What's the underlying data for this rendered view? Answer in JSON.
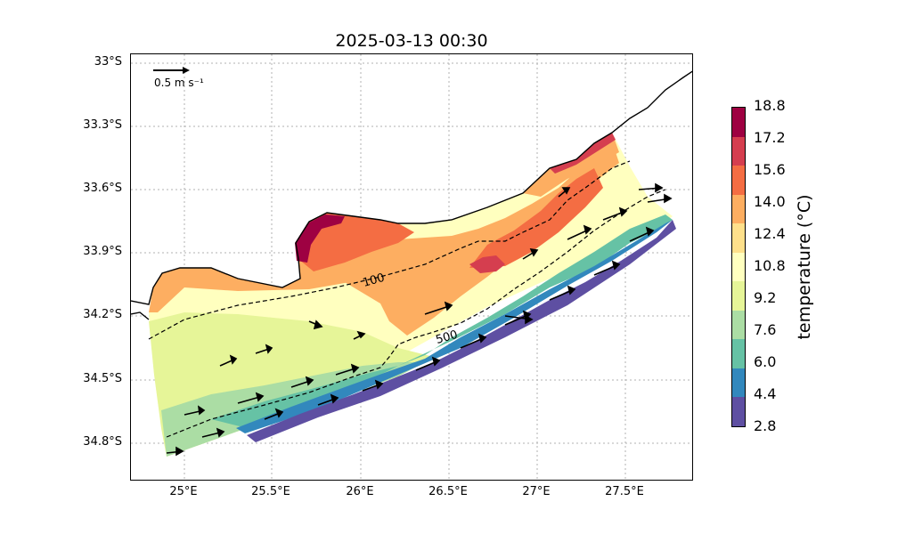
{
  "title": "2025-03-13 00:30",
  "latitude_labels": [
    "33°S",
    "33.3°S",
    "33.6°S",
    "33.9°S",
    "34.2°S",
    "34.5°S",
    "34.8°S"
  ],
  "longitude_labels": [
    "25°E",
    "25.5°E",
    "26°E",
    "26.5°E",
    "27°E",
    "27.5°E"
  ],
  "reference_vector": {
    "label": "0.5 m s⁻¹"
  },
  "contours": {
    "shallow": "100",
    "deep": "500"
  },
  "colorbar": {
    "label": "temperature (°C)",
    "ticks": [
      "18.8",
      "17.2",
      "15.6",
      "14.0",
      "12.4",
      "10.8",
      "9.2",
      "7.6",
      "6.0",
      "4.4",
      "2.8"
    ],
    "colors": [
      "#9e0142",
      "#d53e4f",
      "#f46d43",
      "#fdae61",
      "#fee08b",
      "#ffffbf",
      "#e6f598",
      "#abdda4",
      "#66c2a5",
      "#3288bd",
      "#5e4fa2"
    ]
  }
}
